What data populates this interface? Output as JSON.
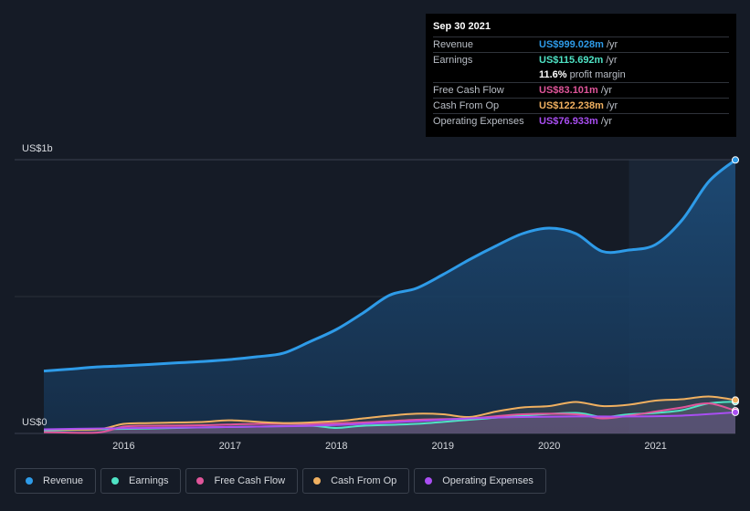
{
  "tooltip": {
    "date": "Sep 30 2021",
    "rows": [
      {
        "label": "Revenue",
        "value": "US$999.028m",
        "unit": "/yr",
        "color": "#2e9be8"
      },
      {
        "label": "Earnings",
        "value": "US$115.692m",
        "unit": "/yr",
        "color": "#4fe3c5"
      },
      {
        "label": "",
        "value": "11.6%",
        "unit": "profit margin",
        "color": "#ffffff"
      },
      {
        "label": "Free Cash Flow",
        "value": "US$83.101m",
        "unit": "/yr",
        "color": "#e0559a"
      },
      {
        "label": "Cash From Op",
        "value": "US$122.238m",
        "unit": "/yr",
        "color": "#f0b060"
      },
      {
        "label": "Operating Expenses",
        "value": "US$76.933m",
        "unit": "/yr",
        "color": "#a94ef2"
      }
    ]
  },
  "legend": [
    {
      "label": "Revenue",
      "color": "#2e9be8"
    },
    {
      "label": "Earnings",
      "color": "#4fe3c5"
    },
    {
      "label": "Free Cash Flow",
      "color": "#e0559a"
    },
    {
      "label": "Cash From Op",
      "color": "#f0b060"
    },
    {
      "label": "Operating Expenses",
      "color": "#a94ef2"
    }
  ],
  "chart_data": {
    "type": "area",
    "ylabel_top": "US$1b",
    "ylabel_bottom": "US$0",
    "ylim": [
      0,
      1000
    ],
    "xlim": [
      2015.25,
      2021.75
    ],
    "xticks": [
      2016,
      2017,
      2018,
      2019,
      2020,
      2021
    ],
    "xtick_labels": [
      "2016",
      "2017",
      "2018",
      "2019",
      "2020",
      "2021"
    ],
    "highlight_from": 2020.75,
    "series": [
      {
        "name": "Revenue",
        "color": "#2e9be8",
        "x": [
          2015.25,
          2015.5,
          2015.75,
          2016.0,
          2016.25,
          2016.5,
          2016.75,
          2017.0,
          2017.25,
          2017.5,
          2017.75,
          2018.0,
          2018.25,
          2018.5,
          2018.75,
          2019.0,
          2019.25,
          2019.5,
          2019.75,
          2020.0,
          2020.25,
          2020.5,
          2020.75,
          2021.0,
          2021.25,
          2021.5,
          2021.75
        ],
        "y": [
          228,
          235,
          243,
          247,
          252,
          258,
          263,
          270,
          280,
          293,
          335,
          380,
          440,
          505,
          530,
          580,
          635,
          685,
          730,
          750,
          730,
          665,
          670,
          690,
          780,
          920,
          999
        ]
      },
      {
        "name": "Earnings",
        "color": "#4fe3c5",
        "x": [
          2015.25,
          2015.75,
          2016.25,
          2016.75,
          2017.25,
          2017.75,
          2018.0,
          2018.25,
          2018.75,
          2019.25,
          2019.75,
          2020.25,
          2020.5,
          2020.75,
          2021.0,
          2021.25,
          2021.5,
          2021.75
        ],
        "y": [
          10,
          15,
          18,
          22,
          25,
          28,
          20,
          28,
          35,
          50,
          65,
          75,
          60,
          70,
          75,
          85,
          110,
          116
        ]
      },
      {
        "name": "Free Cash Flow",
        "color": "#e0559a",
        "x": [
          2015.25,
          2015.75,
          2016.0,
          2016.25,
          2016.75,
          2017.25,
          2017.75,
          2018.25,
          2018.75,
          2019.25,
          2019.75,
          2020.25,
          2020.5,
          2020.75,
          2021.0,
          2021.25,
          2021.5,
          2021.75
        ],
        "y": [
          5,
          3,
          25,
          28,
          30,
          35,
          35,
          40,
          50,
          55,
          70,
          70,
          55,
          65,
          80,
          95,
          110,
          83
        ]
      },
      {
        "name": "Cash From Op",
        "color": "#f0b060",
        "x": [
          2015.25,
          2015.75,
          2016.0,
          2016.25,
          2016.75,
          2017.0,
          2017.5,
          2018.0,
          2018.25,
          2018.5,
          2018.75,
          2019.0,
          2019.25,
          2019.5,
          2019.75,
          2020.0,
          2020.25,
          2020.5,
          2020.75,
          2021.0,
          2021.25,
          2021.5,
          2021.75
        ],
        "y": [
          15,
          15,
          35,
          38,
          42,
          48,
          38,
          45,
          55,
          65,
          72,
          70,
          60,
          80,
          95,
          100,
          115,
          100,
          105,
          120,
          125,
          135,
          122
        ]
      },
      {
        "name": "Operating Expenses",
        "color": "#a94ef2",
        "x": [
          2015.25,
          2015.75,
          2016.25,
          2016.75,
          2017.25,
          2017.75,
          2018.25,
          2018.75,
          2019.25,
          2019.75,
          2020.25,
          2020.75,
          2021.25,
          2021.75
        ],
        "y": [
          15,
          18,
          20,
          22,
          25,
          28,
          35,
          45,
          55,
          60,
          62,
          62,
          65,
          77
        ]
      }
    ]
  }
}
